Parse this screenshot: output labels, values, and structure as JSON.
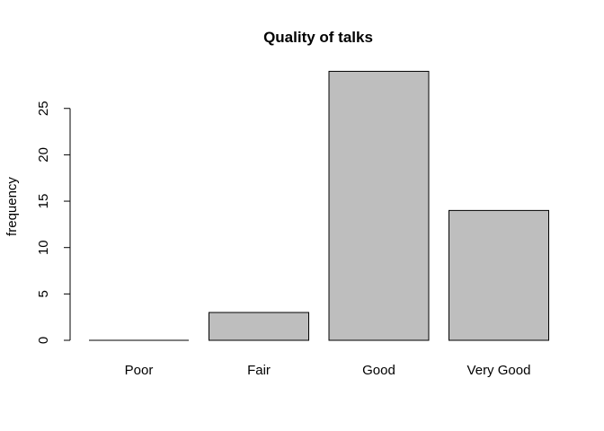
{
  "chart_data": {
    "type": "bar",
    "title": "Quality of talks",
    "xlabel": "",
    "ylabel": "frequency",
    "categories": [
      "Poor",
      "Fair",
      "Good",
      "Very Good"
    ],
    "values": [
      0,
      3,
      29,
      14
    ],
    "yticks": [
      0,
      5,
      10,
      15,
      20,
      25
    ],
    "ylim": [
      0,
      29
    ],
    "grid": false,
    "legend": "none",
    "colors": {
      "bar_fill": "#bebebe",
      "bar_stroke": "#000000",
      "axis": "#000000"
    }
  }
}
